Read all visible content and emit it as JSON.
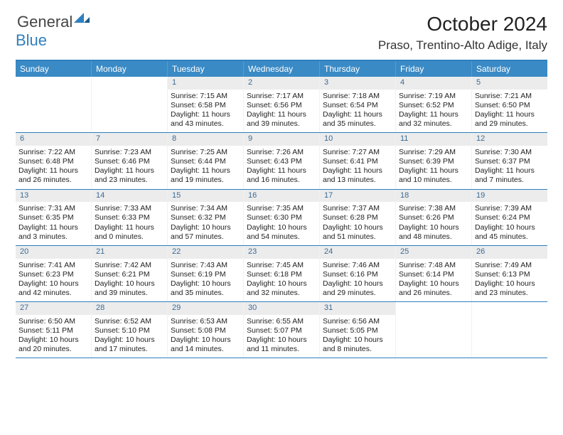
{
  "logo": {
    "word1": "General",
    "word2": "Blue"
  },
  "title": "October 2024",
  "location": "Praso, Trentino-Alto Adige, Italy",
  "colors": {
    "accent": "#3a8ac5",
    "rule": "#2f7fbf",
    "dayHeader": "#ececec",
    "dayNum": "#3b6a95"
  },
  "daysOfWeek": [
    "Sunday",
    "Monday",
    "Tuesday",
    "Wednesday",
    "Thursday",
    "Friday",
    "Saturday"
  ],
  "weeks": [
    [
      {
        "n": "",
        "sr": "",
        "ss": "",
        "dl1": "",
        "dl2": ""
      },
      {
        "n": "",
        "sr": "",
        "ss": "",
        "dl1": "",
        "dl2": ""
      },
      {
        "n": "1",
        "sr": "Sunrise: 7:15 AM",
        "ss": "Sunset: 6:58 PM",
        "dl1": "Daylight: 11 hours",
        "dl2": "and 43 minutes."
      },
      {
        "n": "2",
        "sr": "Sunrise: 7:17 AM",
        "ss": "Sunset: 6:56 PM",
        "dl1": "Daylight: 11 hours",
        "dl2": "and 39 minutes."
      },
      {
        "n": "3",
        "sr": "Sunrise: 7:18 AM",
        "ss": "Sunset: 6:54 PM",
        "dl1": "Daylight: 11 hours",
        "dl2": "and 35 minutes."
      },
      {
        "n": "4",
        "sr": "Sunrise: 7:19 AM",
        "ss": "Sunset: 6:52 PM",
        "dl1": "Daylight: 11 hours",
        "dl2": "and 32 minutes."
      },
      {
        "n": "5",
        "sr": "Sunrise: 7:21 AM",
        "ss": "Sunset: 6:50 PM",
        "dl1": "Daylight: 11 hours",
        "dl2": "and 29 minutes."
      }
    ],
    [
      {
        "n": "6",
        "sr": "Sunrise: 7:22 AM",
        "ss": "Sunset: 6:48 PM",
        "dl1": "Daylight: 11 hours",
        "dl2": "and 26 minutes."
      },
      {
        "n": "7",
        "sr": "Sunrise: 7:23 AM",
        "ss": "Sunset: 6:46 PM",
        "dl1": "Daylight: 11 hours",
        "dl2": "and 23 minutes."
      },
      {
        "n": "8",
        "sr": "Sunrise: 7:25 AM",
        "ss": "Sunset: 6:44 PM",
        "dl1": "Daylight: 11 hours",
        "dl2": "and 19 minutes."
      },
      {
        "n": "9",
        "sr": "Sunrise: 7:26 AM",
        "ss": "Sunset: 6:43 PM",
        "dl1": "Daylight: 11 hours",
        "dl2": "and 16 minutes."
      },
      {
        "n": "10",
        "sr": "Sunrise: 7:27 AM",
        "ss": "Sunset: 6:41 PM",
        "dl1": "Daylight: 11 hours",
        "dl2": "and 13 minutes."
      },
      {
        "n": "11",
        "sr": "Sunrise: 7:29 AM",
        "ss": "Sunset: 6:39 PM",
        "dl1": "Daylight: 11 hours",
        "dl2": "and 10 minutes."
      },
      {
        "n": "12",
        "sr": "Sunrise: 7:30 AM",
        "ss": "Sunset: 6:37 PM",
        "dl1": "Daylight: 11 hours",
        "dl2": "and 7 minutes."
      }
    ],
    [
      {
        "n": "13",
        "sr": "Sunrise: 7:31 AM",
        "ss": "Sunset: 6:35 PM",
        "dl1": "Daylight: 11 hours",
        "dl2": "and 3 minutes."
      },
      {
        "n": "14",
        "sr": "Sunrise: 7:33 AM",
        "ss": "Sunset: 6:33 PM",
        "dl1": "Daylight: 11 hours",
        "dl2": "and 0 minutes."
      },
      {
        "n": "15",
        "sr": "Sunrise: 7:34 AM",
        "ss": "Sunset: 6:32 PM",
        "dl1": "Daylight: 10 hours",
        "dl2": "and 57 minutes."
      },
      {
        "n": "16",
        "sr": "Sunrise: 7:35 AM",
        "ss": "Sunset: 6:30 PM",
        "dl1": "Daylight: 10 hours",
        "dl2": "and 54 minutes."
      },
      {
        "n": "17",
        "sr": "Sunrise: 7:37 AM",
        "ss": "Sunset: 6:28 PM",
        "dl1": "Daylight: 10 hours",
        "dl2": "and 51 minutes."
      },
      {
        "n": "18",
        "sr": "Sunrise: 7:38 AM",
        "ss": "Sunset: 6:26 PM",
        "dl1": "Daylight: 10 hours",
        "dl2": "and 48 minutes."
      },
      {
        "n": "19",
        "sr": "Sunrise: 7:39 AM",
        "ss": "Sunset: 6:24 PM",
        "dl1": "Daylight: 10 hours",
        "dl2": "and 45 minutes."
      }
    ],
    [
      {
        "n": "20",
        "sr": "Sunrise: 7:41 AM",
        "ss": "Sunset: 6:23 PM",
        "dl1": "Daylight: 10 hours",
        "dl2": "and 42 minutes."
      },
      {
        "n": "21",
        "sr": "Sunrise: 7:42 AM",
        "ss": "Sunset: 6:21 PM",
        "dl1": "Daylight: 10 hours",
        "dl2": "and 39 minutes."
      },
      {
        "n": "22",
        "sr": "Sunrise: 7:43 AM",
        "ss": "Sunset: 6:19 PM",
        "dl1": "Daylight: 10 hours",
        "dl2": "and 35 minutes."
      },
      {
        "n": "23",
        "sr": "Sunrise: 7:45 AM",
        "ss": "Sunset: 6:18 PM",
        "dl1": "Daylight: 10 hours",
        "dl2": "and 32 minutes."
      },
      {
        "n": "24",
        "sr": "Sunrise: 7:46 AM",
        "ss": "Sunset: 6:16 PM",
        "dl1": "Daylight: 10 hours",
        "dl2": "and 29 minutes."
      },
      {
        "n": "25",
        "sr": "Sunrise: 7:48 AM",
        "ss": "Sunset: 6:14 PM",
        "dl1": "Daylight: 10 hours",
        "dl2": "and 26 minutes."
      },
      {
        "n": "26",
        "sr": "Sunrise: 7:49 AM",
        "ss": "Sunset: 6:13 PM",
        "dl1": "Daylight: 10 hours",
        "dl2": "and 23 minutes."
      }
    ],
    [
      {
        "n": "27",
        "sr": "Sunrise: 6:50 AM",
        "ss": "Sunset: 5:11 PM",
        "dl1": "Daylight: 10 hours",
        "dl2": "and 20 minutes."
      },
      {
        "n": "28",
        "sr": "Sunrise: 6:52 AM",
        "ss": "Sunset: 5:10 PM",
        "dl1": "Daylight: 10 hours",
        "dl2": "and 17 minutes."
      },
      {
        "n": "29",
        "sr": "Sunrise: 6:53 AM",
        "ss": "Sunset: 5:08 PM",
        "dl1": "Daylight: 10 hours",
        "dl2": "and 14 minutes."
      },
      {
        "n": "30",
        "sr": "Sunrise: 6:55 AM",
        "ss": "Sunset: 5:07 PM",
        "dl1": "Daylight: 10 hours",
        "dl2": "and 11 minutes."
      },
      {
        "n": "31",
        "sr": "Sunrise: 6:56 AM",
        "ss": "Sunset: 5:05 PM",
        "dl1": "Daylight: 10 hours",
        "dl2": "and 8 minutes."
      },
      {
        "n": "",
        "sr": "",
        "ss": "",
        "dl1": "",
        "dl2": ""
      },
      {
        "n": "",
        "sr": "",
        "ss": "",
        "dl1": "",
        "dl2": ""
      }
    ]
  ]
}
